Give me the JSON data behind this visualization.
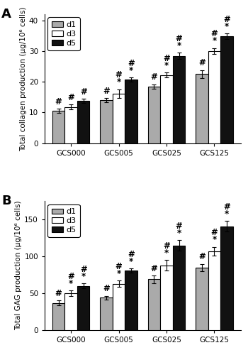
{
  "panel_A": {
    "title": "A",
    "ylabel": "Total collagen production (μg/10⁶ cells)",
    "groups": [
      "GCS000",
      "GCS005",
      "GCS025",
      "GCS125"
    ],
    "d1_values": [
      10.5,
      14.0,
      18.5,
      22.5
    ],
    "d3_values": [
      11.8,
      16.2,
      22.2,
      30.0
    ],
    "d5_values": [
      13.8,
      20.7,
      28.4,
      34.8
    ],
    "d1_errors": [
      0.7,
      0.6,
      0.7,
      1.3
    ],
    "d3_errors": [
      0.8,
      1.4,
      0.8,
      1.0
    ],
    "d5_errors": [
      0.6,
      0.7,
      1.0,
      1.0
    ],
    "ylim": [
      0,
      42
    ],
    "yticks": [
      0,
      10,
      20,
      30,
      40
    ],
    "annotations_hash": {
      "d1": [
        true,
        true,
        true,
        true
      ],
      "d3": [
        true,
        true,
        true,
        true
      ],
      "d5": [
        true,
        true,
        true,
        true
      ]
    },
    "annotations_star": {
      "d1": [
        false,
        false,
        false,
        false
      ],
      "d3": [
        false,
        true,
        true,
        true
      ],
      "d5": [
        false,
        true,
        true,
        true
      ]
    }
  },
  "panel_B": {
    "title": "B",
    "ylabel": "Total GAG production (μg/10⁶ cells)",
    "groups": [
      "GCS000",
      "GCS005",
      "GCS025",
      "GCS125"
    ],
    "d1_values": [
      37.0,
      44.0,
      69.0,
      85.0
    ],
    "d3_values": [
      50.0,
      63.0,
      88.0,
      107.0
    ],
    "d5_values": [
      60.0,
      81.0,
      115.0,
      141.0
    ],
    "d1_errors": [
      3.0,
      2.5,
      5.0,
      5.0
    ],
    "d3_errors": [
      3.5,
      4.0,
      7.0,
      6.0
    ],
    "d5_errors": [
      3.5,
      3.0,
      7.0,
      7.0
    ],
    "ylim": [
      0,
      175
    ],
    "yticks": [
      0,
      50,
      100,
      150
    ],
    "annotations_hash": {
      "d1": [
        true,
        true,
        true,
        true
      ],
      "d3": [
        true,
        true,
        true,
        true
      ],
      "d5": [
        true,
        true,
        true,
        true
      ]
    },
    "annotations_star": {
      "d1": [
        false,
        false,
        false,
        false
      ],
      "d3": [
        true,
        true,
        true,
        true
      ],
      "d5": [
        true,
        true,
        true,
        true
      ]
    }
  },
  "bar_colors": {
    "d1": "#aaaaaa",
    "d3": "#ffffff",
    "d5": "#111111"
  },
  "bar_edgecolor": "#000000",
  "bar_width": 0.26,
  "fontsize_axis": 7.5,
  "fontsize_tick": 7.5,
  "fontsize_annot": 8.5,
  "fontsize_legend": 8,
  "fontsize_panel_label": 13
}
